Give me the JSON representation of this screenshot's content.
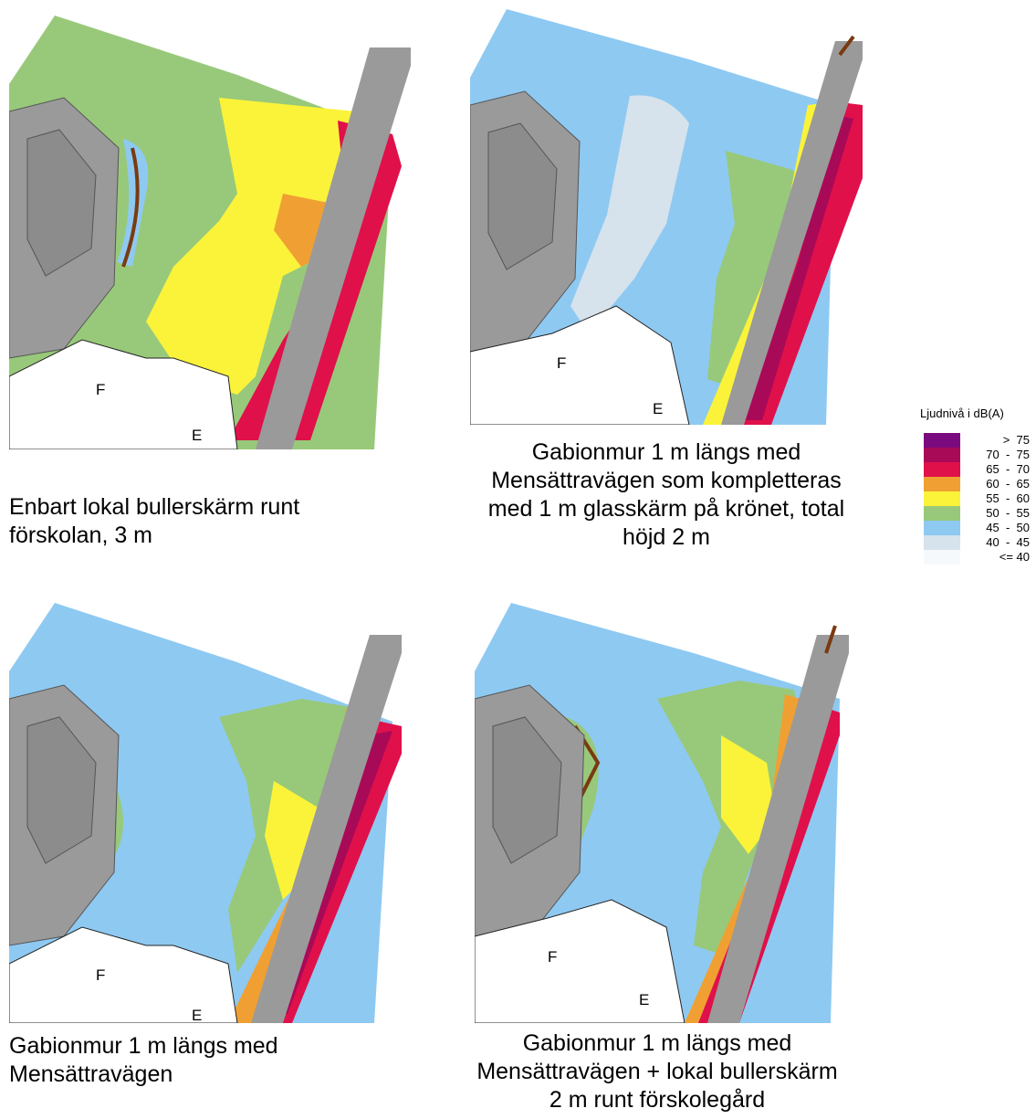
{
  "maps": [
    {
      "id": "top-left",
      "caption": [
        "Enbart lokal bullerskärm runt",
        "förskolan, 3 m"
      ],
      "labels": [
        "F",
        "E"
      ]
    },
    {
      "id": "top-right",
      "caption": [
        "Gabionmur 1 m längs med",
        "Mensättravägen som kompletteras",
        "med 1 m glasskärm på krönet, total",
        "höjd 2 m"
      ],
      "labels": [
        "F",
        "E"
      ]
    },
    {
      "id": "bottom-left",
      "caption": [
        "Gabionmur 1 m längs med",
        "Mensättravägen"
      ],
      "labels": [
        "F",
        "E"
      ]
    },
    {
      "id": "bottom-right",
      "caption": [
        "Gabionmur 1 m längs med",
        "Mensättravägen + lokal bullerskärm",
        "2 m runt förskolegård"
      ],
      "labels": [
        "F",
        "E"
      ]
    }
  ],
  "legend": {
    "title": "Ljudnivå i dB(A)",
    "items": [
      {
        "label": ">  75",
        "color": "#7b0a7e"
      },
      {
        "label": "70  -  75",
        "color": "#a80a58"
      },
      {
        "label": "65  -  70",
        "color": "#e0104a"
      },
      {
        "label": "60  -  65",
        "color": "#f0a033"
      },
      {
        "label": "55  -  60",
        "color": "#fbf33a"
      },
      {
        "label": "50  -  55",
        "color": "#98c97a"
      },
      {
        "label": "45  -  50",
        "color": "#8ec9f2"
      },
      {
        "label": "40  -  45",
        "color": "#d6e2ec"
      },
      {
        "label": "<= 40",
        "color": "#f6f9fb"
      }
    ]
  }
}
